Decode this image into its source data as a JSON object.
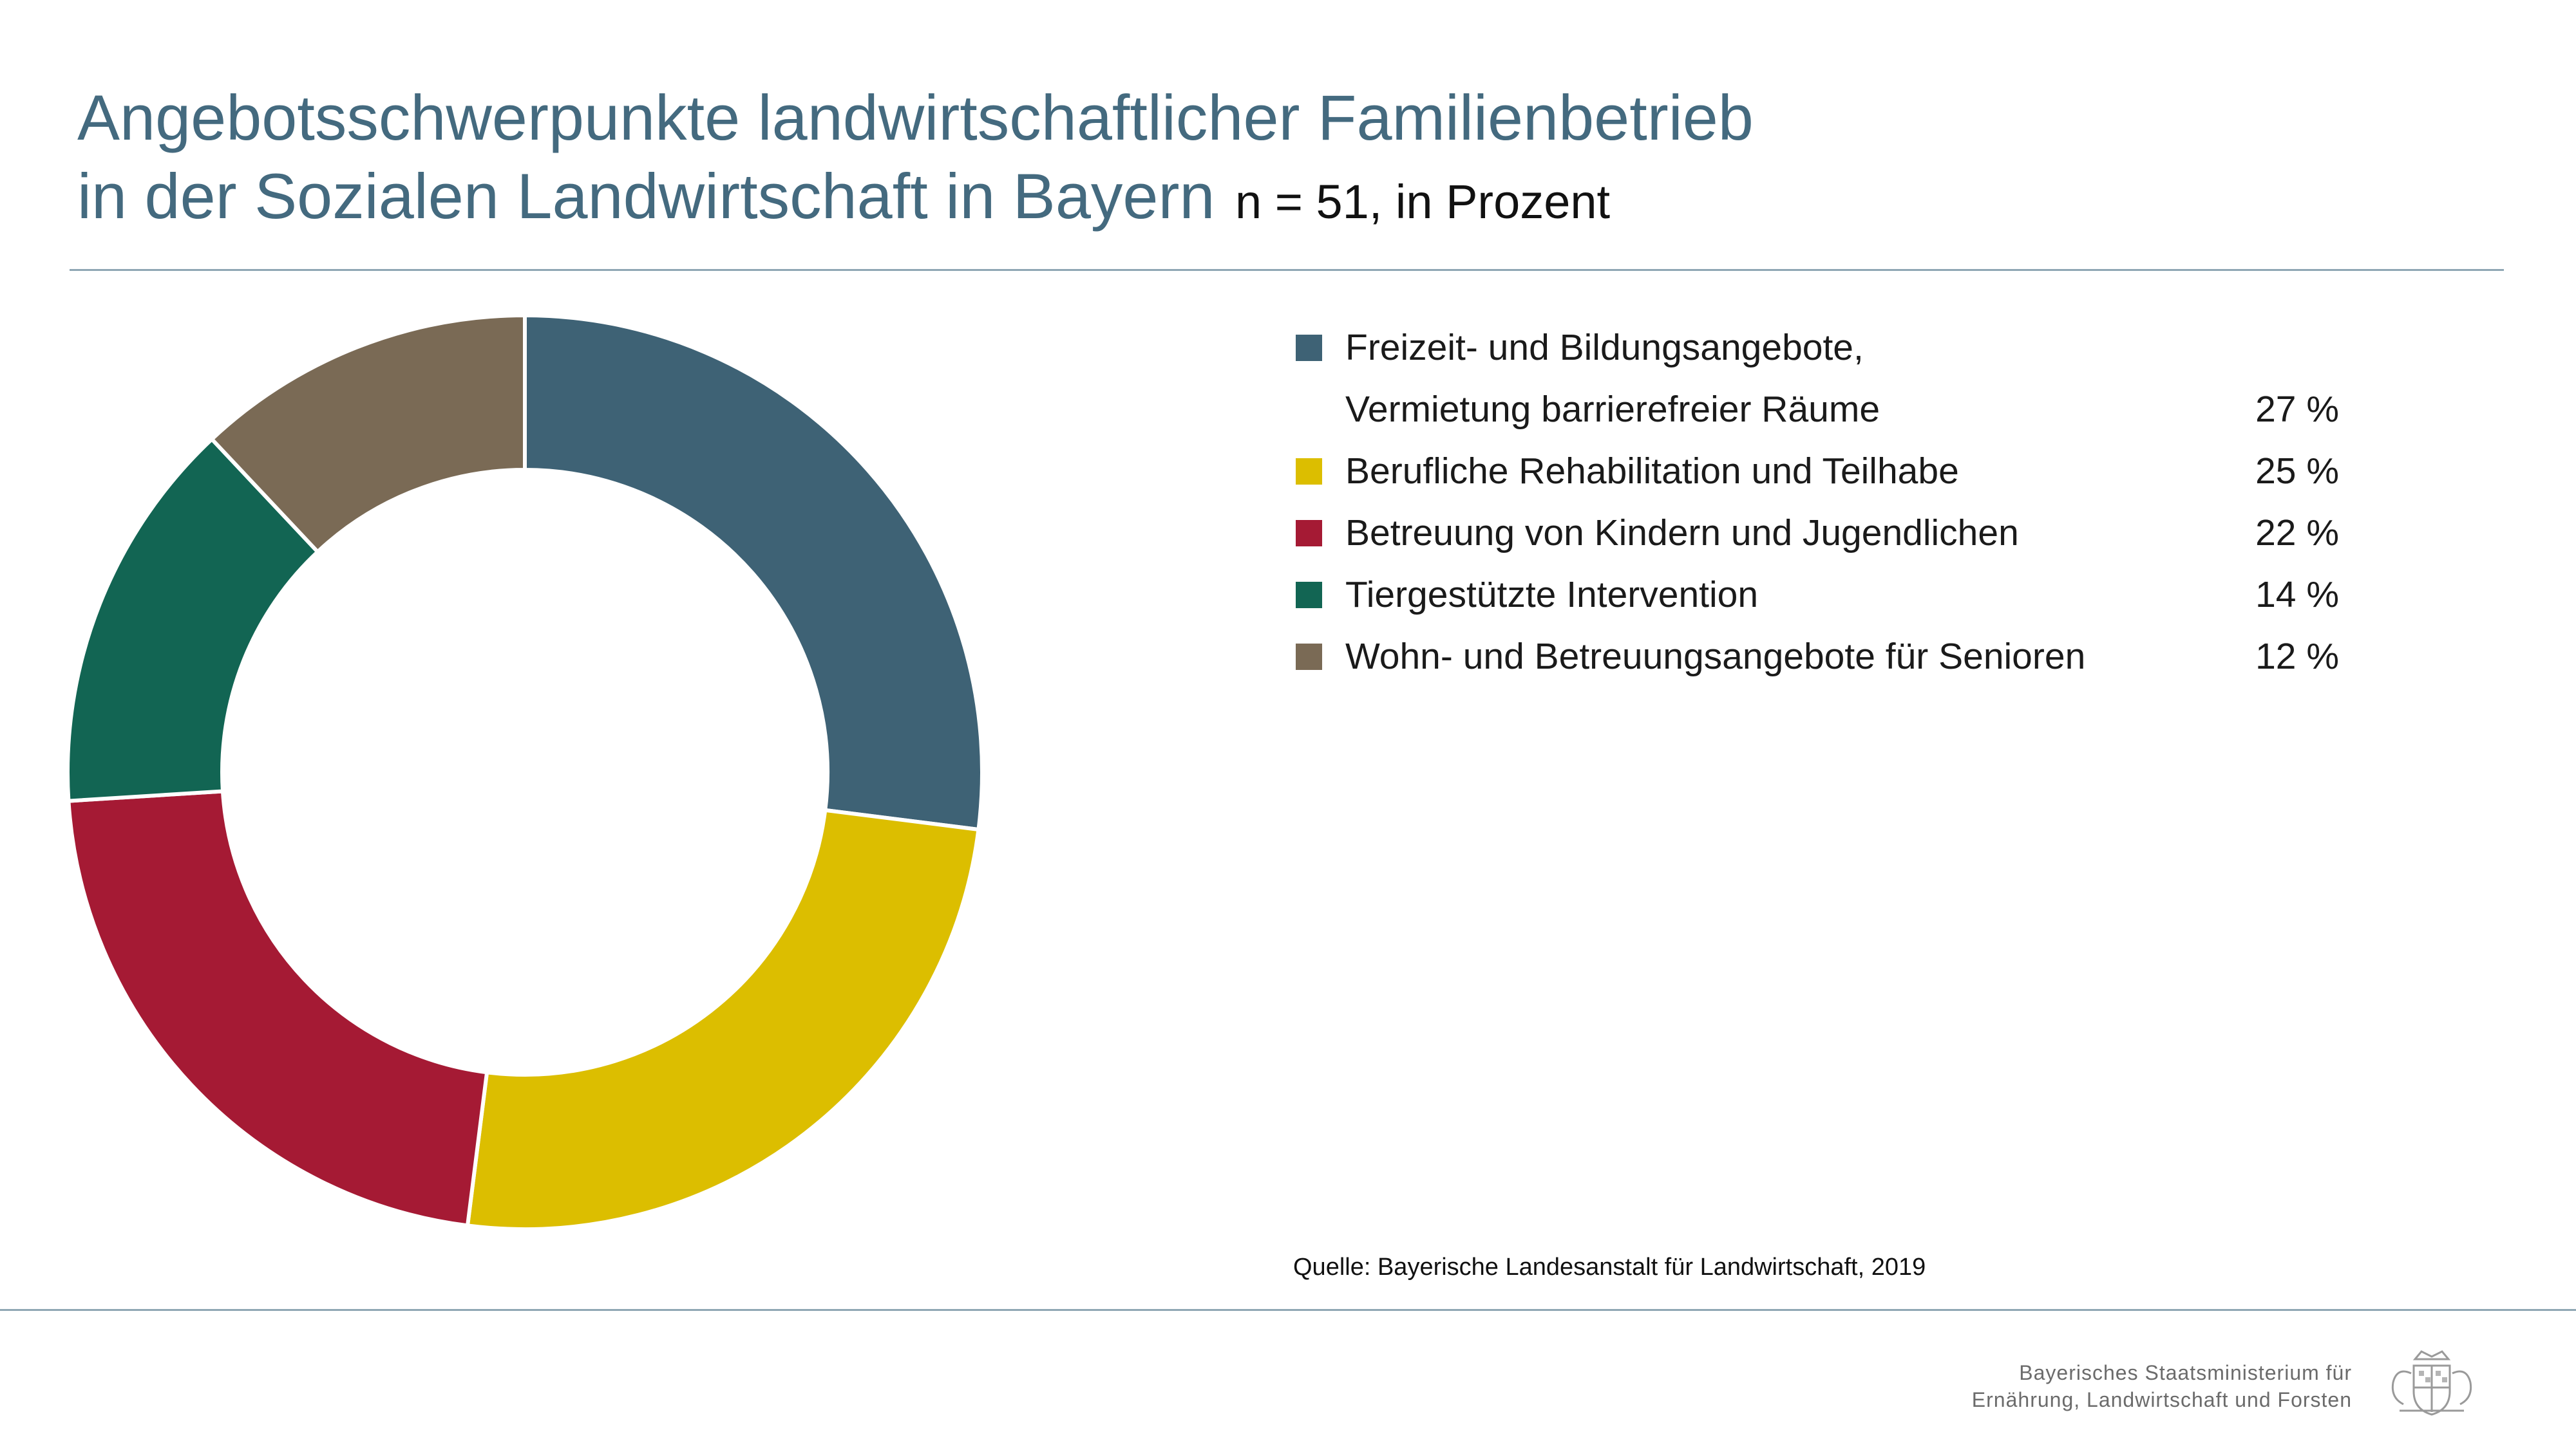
{
  "title": {
    "line1": "Angebotsschwerpunkte landwirtschaftlicher Familienbetrieb",
    "line2": "in der Sozialen Landwirtschaft in Bayern",
    "note": "n = 51, in Prozent"
  },
  "chart_data": {
    "type": "pie",
    "donut": true,
    "start": "12 o'clock, clockwise",
    "categories": [
      "Freizeit- und Bildungsangebote, Vermietung barrierefreier Räume",
      "Berufliche Rehabilitation und Teilhabe",
      "Betreuung von Kindern und Jugendlichen",
      "Tiergestützte Intervention",
      "Wohn- und Betreuungsangebote für Senioren"
    ],
    "values": [
      27,
      25,
      22,
      14,
      12
    ],
    "unit": "%",
    "colors": [
      "#3e6275",
      "#dcbe00",
      "#a51a34",
      "#126553",
      "#7a6a55"
    ],
    "legend_position": "right"
  },
  "legend": {
    "items": [
      {
        "label_line1": "Freizeit- und Bildungsangebote,",
        "label_line2": "Vermietung barrierefreier Räume",
        "value": "27 %",
        "color": "#3e6275"
      },
      {
        "label": "Berufliche Rehabilitation und Teilhabe",
        "value": "25 %",
        "color": "#dcbe00"
      },
      {
        "label": "Betreuung von Kindern und Jugendlichen",
        "value": "22 %",
        "color": "#a51a34"
      },
      {
        "label": "Tiergestützte Intervention",
        "value": "14 %",
        "color": "#126553"
      },
      {
        "label": "Wohn- und Betreuungsangebote für Senioren",
        "value": "12 %",
        "color": "#7a6a55"
      }
    ]
  },
  "source": "Quelle: Bayerische Landesanstalt für Landwirtschaft, 2019",
  "footer": {
    "ministry_line1": "Bayerisches Staatsministerium für",
    "ministry_line2": "Ernährung, Landwirtschaft und Forsten",
    "crest_icon": "bavarian-coat-of-arms-icon"
  }
}
